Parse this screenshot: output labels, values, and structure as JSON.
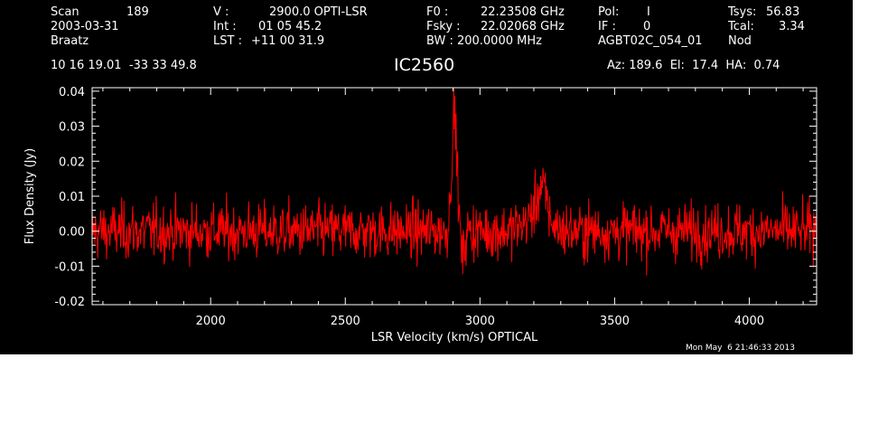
{
  "header": {
    "row1": {
      "scan_label": "Scan",
      "scan_value": "189",
      "v_label": "V :",
      "v_value": "2900.0 OPTI-LSR",
      "f0_label": "F0 :",
      "f0_value": "22.23508 GHz",
      "pol_label": "Pol:",
      "pol_value": "I",
      "tsys_label": "Tsys:",
      "tsys_value": "56.83"
    },
    "row2": {
      "date": "2003-03-31",
      "int_label": "Int :",
      "int_value": "01 05 45.2",
      "fsky_label": "Fsky :",
      "fsky_value": "22.02068 GHz",
      "if_label": "IF :",
      "if_value": "0",
      "tcal_label": "Tcal:",
      "tcal_value": "3.34"
    },
    "row3": {
      "observer": "Braatz",
      "lst_label": "LST :",
      "lst_value": "+11 00 31.9",
      "bw_label": "BW : 200.0000 MHz",
      "project": "AGBT02C_054_01",
      "proc": "Nod"
    },
    "coords": "10 16 19.01  -33 33 49.8",
    "source": "IC2560",
    "az_el_ha": "Az: 189.6  El:  17.4  HA:  0.74",
    "timestamp": "Mon May  6 21:46:33 2013"
  },
  "colors": {
    "background": "#000000",
    "axes": "#ffffff",
    "trace": "#ff0000"
  },
  "chart_data": {
    "type": "line",
    "xlabel": "LSR Velocity (km/s) OPTICAL",
    "ylabel": "Flux Density (Jy)",
    "xlim": [
      1560,
      4250
    ],
    "ylim": [
      -0.021,
      0.041
    ],
    "x_ticks": [
      2000,
      2500,
      3000,
      3500,
      4000
    ],
    "x_tick_labels": [
      "2000",
      "2500",
      "3000",
      "3500",
      "4000"
    ],
    "y_ticks": [
      -0.02,
      -0.01,
      0.0,
      0.01,
      0.02,
      0.03,
      0.04
    ],
    "y_tick_labels": [
      "-0.02",
      "-0.01",
      "0.00",
      "0.01",
      "0.02",
      "0.03",
      "0.04"
    ],
    "grid": false,
    "series": [
      {
        "noise_rms": 0.004,
        "features": [
          {
            "center": 2905,
            "width": 10,
            "peak": 0.033
          },
          {
            "center": 2935,
            "width": 7,
            "peak": -0.008
          },
          {
            "center": 3230,
            "width": 18,
            "peak": 0.009
          },
          {
            "center": 3210,
            "width": 45,
            "peak": 0.004
          }
        ]
      }
    ]
  }
}
